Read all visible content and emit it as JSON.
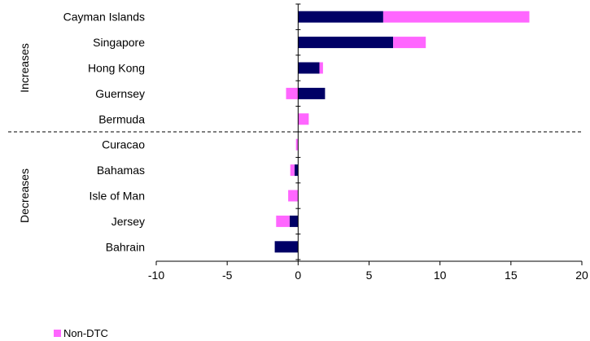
{
  "chart_data": {
    "type": "bar",
    "orientation": "horizontal",
    "stacked": true,
    "categories": [
      "Cayman Islands",
      "Singapore",
      "Hong Kong",
      "Guernsey",
      "Bermuda",
      "Curacao",
      "Bahamas",
      "Isle of Man",
      "Jersey",
      "Bahrain"
    ],
    "groups": [
      {
        "label": "Increases",
        "categories": [
          "Cayman Islands",
          "Singapore",
          "Hong Kong",
          "Guernsey",
          "Bermuda"
        ]
      },
      {
        "label": "Decreases",
        "categories": [
          "Curacao",
          "Bahamas",
          "Isle of Man",
          "Jersey",
          "Bahrain"
        ]
      }
    ],
    "series": [
      {
        "key": "dtc",
        "values": [
          6.0,
          6.7,
          1.5,
          1.9,
          0.0,
          0.0,
          -0.25,
          0.0,
          -0.6,
          -1.65
        ]
      },
      {
        "name": "Non-DTC",
        "key": "nondtc",
        "values": [
          10.3,
          2.3,
          0.25,
          -0.85,
          0.75,
          -0.15,
          -0.3,
          -0.7,
          -0.95,
          0.0
        ]
      }
    ],
    "xlim": [
      -10,
      20
    ],
    "xticks": [
      -10,
      -5,
      0,
      5,
      10,
      15,
      20
    ],
    "grid": false,
    "legend_position": "bottom-left",
    "colors": {
      "dtc": "#000066",
      "nondtc": "#ff66ff"
    }
  }
}
